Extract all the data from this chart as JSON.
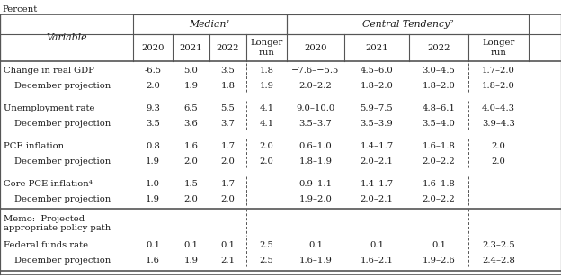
{
  "title": "Percent",
  "median_label": "Median¹",
  "ct_label": "Central Tendency²",
  "subheader_labels": [
    "Variable",
    "2020",
    "2021",
    "2022",
    "Longer\nrun",
    "2020",
    "2021",
    "2022",
    "Longer\nrun"
  ],
  "rows": [
    {
      "label": "Change in real GDP",
      "proj": "December projection",
      "values": [
        "-6.5",
        "5.0",
        "3.5",
        "1.8",
        "−7.6–−5.5",
        "4.5–6.0",
        "3.0–4.5",
        "1.7–2.0"
      ],
      "proj_values": [
        "2.0",
        "1.9",
        "1.8",
        "1.9",
        "2.0–2.2",
        "1.8–2.0",
        "1.8–2.0",
        "1.8–2.0"
      ]
    },
    {
      "label": "Unemployment rate",
      "proj": "December projection",
      "values": [
        "9.3",
        "6.5",
        "5.5",
        "4.1",
        "9.0–10.0",
        "5.9–7.5",
        "4.8–6.1",
        "4.0–4.3"
      ],
      "proj_values": [
        "3.5",
        "3.6",
        "3.7",
        "4.1",
        "3.5–3.7",
        "3.5–3.9",
        "3.5–4.0",
        "3.9–4.3"
      ]
    },
    {
      "label": "PCE inflation",
      "proj": "December projection",
      "values": [
        "0.8",
        "1.6",
        "1.7",
        "2.0",
        "0.6–1.0",
        "1.4–1.7",
        "1.6–1.8",
        "2.0"
      ],
      "proj_values": [
        "1.9",
        "2.0",
        "2.0",
        "2.0",
        "1.8–1.9",
        "2.0–2.1",
        "2.0–2.2",
        "2.0"
      ]
    },
    {
      "label": "Core PCE inflation⁴",
      "proj": "December projection",
      "values": [
        "1.0",
        "1.5",
        "1.7",
        "",
        "0.9–1.1",
        "1.4–1.7",
        "1.6–1.8",
        ""
      ],
      "proj_values": [
        "1.9",
        "2.0",
        "2.0",
        "",
        "1.9–2.0",
        "2.0–2.1",
        "2.0–2.2",
        ""
      ]
    }
  ],
  "memo_label": "Memo:  Projected\nappropriate policy path",
  "fed_label": "Federal funds rate",
  "fed_proj": "December projection",
  "fed_values": [
    "0.1",
    "0.1",
    "0.1",
    "2.5",
    "0.1",
    "0.1",
    "0.1",
    "2.3–2.5"
  ],
  "fed_proj_values": [
    "1.6",
    "1.9",
    "2.1",
    "2.5",
    "1.6–1.9",
    "1.6–2.1",
    "1.9–2.6",
    "2.4–2.8"
  ],
  "bg_color": "#ffffff",
  "text_color": "#1a1a1a",
  "grid_color": "#555555",
  "font_size": 7.2,
  "header_font_size": 7.8
}
